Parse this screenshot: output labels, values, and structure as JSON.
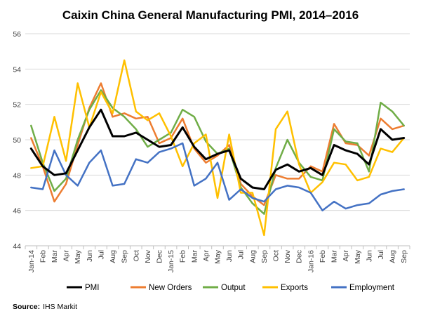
{
  "chart_data": {
    "type": "line",
    "title": "Caixin China General Manufacturing PMI, 2014–2016",
    "xlabel": "",
    "ylabel": "",
    "ylim": [
      44,
      56
    ],
    "yticks": [
      "44",
      "46",
      "48",
      "50",
      "52",
      "54",
      "56"
    ],
    "grid": "horizontal",
    "legend_position": "bottom",
    "categories": [
      "Jan-14",
      "Feb",
      "Mar",
      "Apr",
      "May",
      "Jun",
      "Jul",
      "Aug",
      "Sep",
      "Oct",
      "Nov",
      "Dec",
      "Jan-15",
      "Feb",
      "Mar",
      "Apr",
      "May",
      "Jun",
      "Jul",
      "Aug",
      "Sep",
      "Oct",
      "Nov",
      "Dec",
      "Jan-16",
      "Feb",
      "Mar",
      "Apr",
      "May",
      "Jun",
      "Jul",
      "Aug",
      "Sep"
    ],
    "series": [
      {
        "name": "PMI",
        "color": "#000000",
        "values": [
          49.5,
          48.5,
          48.0,
          48.1,
          49.4,
          50.7,
          51.7,
          50.2,
          50.2,
          50.4,
          50.0,
          49.6,
          49.7,
          50.7,
          49.6,
          48.9,
          49.2,
          49.4,
          47.8,
          47.3,
          47.2,
          48.3,
          48.6,
          48.2,
          48.4,
          48.0,
          49.7,
          49.4,
          49.2,
          48.6,
          50.6,
          50.0,
          50.1
        ]
      },
      {
        "name": "New Orders",
        "color": "#ED7D31",
        "values": [
          50.1,
          48.5,
          46.5,
          47.5,
          49.7,
          51.8,
          53.2,
          51.3,
          51.5,
          51.2,
          51.3,
          49.8,
          50.1,
          51.2,
          49.5,
          48.7,
          49.1,
          49.7,
          47.5,
          46.8,
          46.3,
          48.0,
          47.8,
          47.8,
          48.5,
          48.2,
          50.9,
          49.8,
          49.7,
          49.1,
          51.2,
          50.6,
          50.8
        ]
      },
      {
        "name": "Output",
        "color": "#70AD47",
        "values": [
          50.8,
          48.7,
          47.1,
          47.8,
          50.0,
          51.7,
          52.8,
          51.8,
          51.3,
          50.6,
          49.6,
          50.0,
          50.4,
          51.7,
          51.3,
          49.9,
          49.2,
          49.5,
          47.3,
          46.4,
          45.8,
          48.4,
          50.0,
          48.7,
          47.9,
          47.7,
          50.6,
          49.9,
          49.8,
          48.2,
          52.1,
          51.6,
          50.8
        ]
      },
      {
        "name": "Exports",
        "color": "#FFC000",
        "values": [
          48.4,
          48.5,
          51.3,
          48.8,
          53.2,
          50.7,
          52.7,
          51.5,
          54.5,
          51.6,
          51.1,
          51.5,
          50.2,
          48.5,
          49.8,
          50.3,
          46.7,
          50.3,
          47.0,
          47.0,
          44.6,
          50.6,
          51.6,
          48.6,
          47.0,
          47.6,
          48.7,
          48.6,
          47.7,
          47.9,
          49.5,
          49.3,
          50.1
        ]
      },
      {
        "name": "Employment",
        "color": "#4472C4",
        "values": [
          47.3,
          47.2,
          49.4,
          48.0,
          47.4,
          48.7,
          49.4,
          47.4,
          47.5,
          48.9,
          48.7,
          49.3,
          49.5,
          49.8,
          47.4,
          47.8,
          48.7,
          46.6,
          47.2,
          46.7,
          46.5,
          47.2,
          47.4,
          47.3,
          47.0,
          46.0,
          46.5,
          46.1,
          46.3,
          46.4,
          46.9,
          47.1,
          47.2
        ]
      }
    ]
  },
  "source": {
    "label": "Source:",
    "text": "IHS Markit"
  }
}
